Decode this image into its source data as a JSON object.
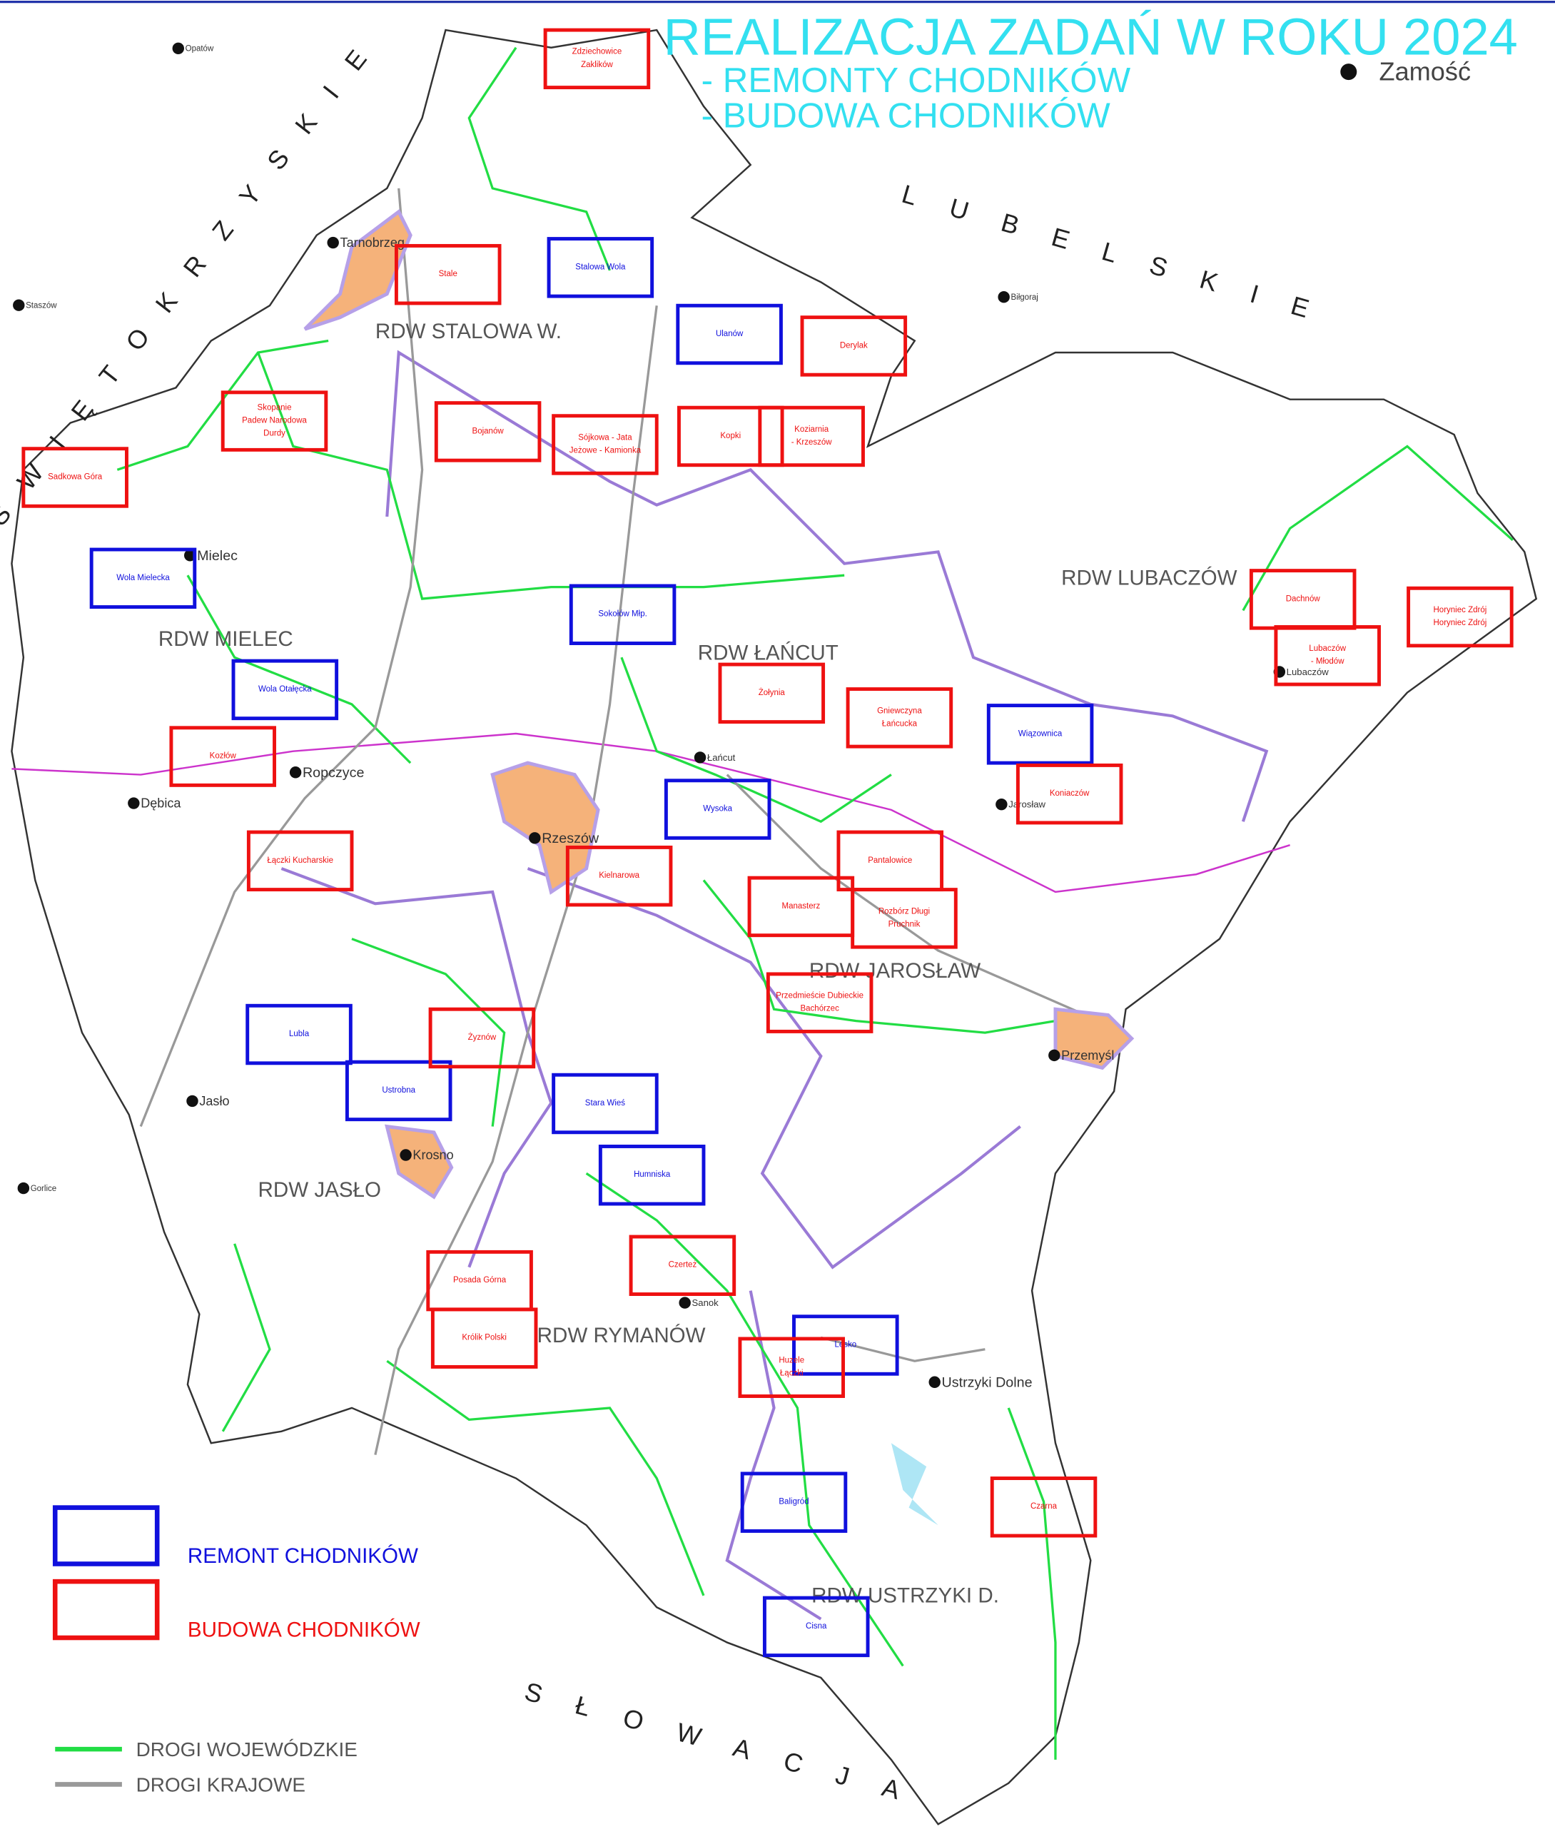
{
  "header": {
    "title": "REALIZACJA ZADAŃ W ROKU 2024",
    "subtitles": [
      "- REMONTY CHODNIKÓW",
      "- BUDOWA CHODNIKÓW"
    ]
  },
  "neighbors": [
    "ŚWIĘTOKRZYSKIE",
    "LUBELSKIE",
    "SŁOWACJA"
  ],
  "districts": [
    "RDW STALOWA W.",
    "RDW MIELEC",
    "RDW ŁAŃCUT",
    "RDW LUBACZÓW",
    "RDW JAROSŁAW",
    "RDW JASŁO",
    "RDW RYMANÓW",
    "RDW USTRZYKI D."
  ],
  "cities": [
    "Zamość",
    "Tarnobrzeg",
    "Mielec",
    "Dębica",
    "Ropczyce",
    "Rzeszów",
    "Krosno",
    "Jasło",
    "Sanok",
    "Przemyśl",
    "Ustrzyki Dolne",
    "Łańcut",
    "Jarosław",
    "Lubaczów",
    "Opatów",
    "Staszów",
    "Biłgoraj",
    "Gorlice"
  ],
  "remont_boxes": [
    [
      "Stalowa Wola"
    ],
    [
      "Ulanów"
    ],
    [
      "Wola Mielecka"
    ],
    [
      "Sokołów Młp."
    ],
    [
      "Wola Otałęcka"
    ],
    [
      "Wiązownica"
    ],
    [
      "Wysoka"
    ],
    [
      "Lubla"
    ],
    [
      "Ustrobna"
    ],
    [
      "Stara Wieś"
    ],
    [
      "Humniska"
    ],
    [
      "Lesko"
    ],
    [
      "Baligród"
    ],
    [
      "Cisna"
    ]
  ],
  "budowa_boxes": [
    [
      "Zdziechowice",
      "Zaklików"
    ],
    [
      "Stale"
    ],
    [
      "Derylak"
    ],
    [
      "Skopanie",
      "Padew Narodowa",
      "Durdy"
    ],
    [
      "Bojanów"
    ],
    [
      "Sójkowa - Jata",
      "Jeżowe - Kamionka"
    ],
    [
      "Kopki"
    ],
    [
      "Koziarnia",
      "- Krzeszów"
    ],
    [
      "Sadkowa Góra"
    ],
    [
      "Żołynia"
    ],
    [
      "Gniewczyna",
      "Łańcucka"
    ],
    [
      "Kozłów"
    ],
    [
      "Koniaczów"
    ],
    [
      "Łączki Kucharskie"
    ],
    [
      "Kielnarowa"
    ],
    [
      "Pantalowice"
    ],
    [
      "Manasterz"
    ],
    [
      "Rozbórz Długi",
      "Pruchnik"
    ],
    [
      "Przedmieście Dubieckie",
      "Bachórzec"
    ],
    [
      "Żyznów"
    ],
    [
      "Czerteż"
    ],
    [
      "Posada Górna"
    ],
    [
      "Królik Polski"
    ],
    [
      "Huzele",
      "Łączki"
    ],
    [
      "Horyniec Zdrój",
      "Horyniec Zdrój"
    ],
    [
      "Dachnów"
    ],
    [
      "Lubaczów",
      "- Młodów"
    ],
    [
      "Czarna"
    ]
  ],
  "legend": {
    "remont": "REMONT CHODNIKÓW",
    "budowa": "BUDOWA CHODNIKÓW",
    "roads_voivodeship": "DROGI WOJEWÓDZKIE",
    "roads_national": "DROGI KRAJOWE"
  }
}
